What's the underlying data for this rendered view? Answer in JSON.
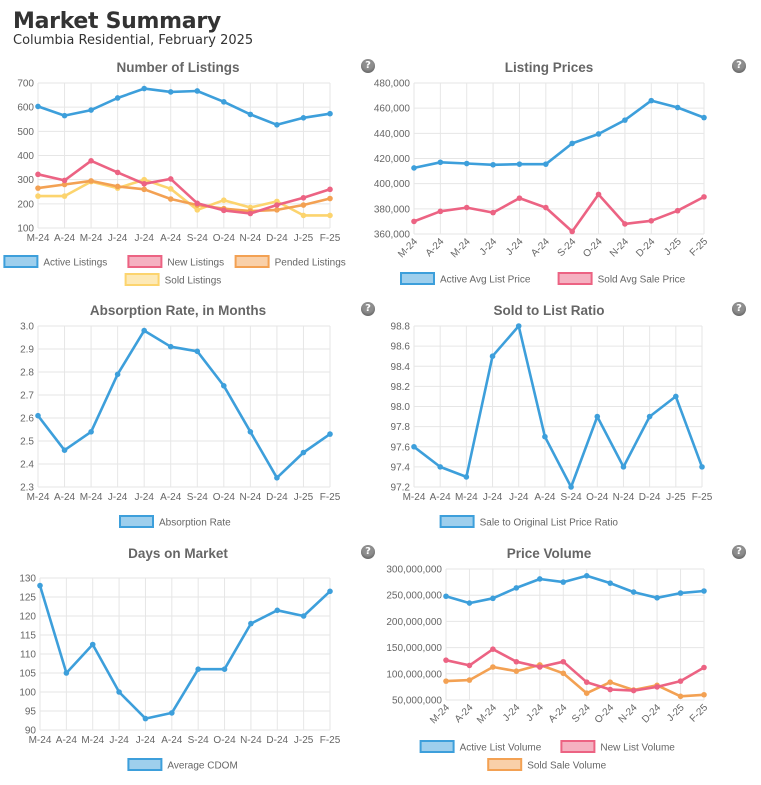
{
  "page": {
    "title": "Market Summary",
    "subtitle": "Columbia Residential, February 2025",
    "help_glyph": "?"
  },
  "chart_data": [
    {
      "id": "listings",
      "type": "line",
      "title": "Number of Listings",
      "categories": [
        "M-24",
        "A-24",
        "M-24",
        "J-24",
        "J-24",
        "A-24",
        "S-24",
        "O-24",
        "N-24",
        "D-24",
        "J-25",
        "F-25"
      ],
      "ylim": [
        100,
        700
      ],
      "yticks": [
        100,
        200,
        300,
        400,
        500,
        600,
        700
      ],
      "grid": true,
      "legend_position": "bottom",
      "series": [
        {
          "name": "Active Listings",
          "color": "#3d9fdb",
          "values": [
            603,
            565,
            588,
            638,
            677,
            663,
            667,
            622,
            570,
            527,
            556,
            573
          ]
        },
        {
          "name": "New Listings",
          "color": "#ec6383",
          "values": [
            322,
            297,
            378,
            330,
            283,
            303,
            202,
            173,
            160,
            195,
            225,
            260
          ]
        },
        {
          "name": "Pended Listings",
          "color": "#f3a153",
          "values": [
            265,
            280,
            295,
            272,
            260,
            220,
            195,
            180,
            170,
            175,
            195,
            222
          ]
        },
        {
          "name": "Sold Listings",
          "color": "#fcd46e",
          "values": [
            232,
            232,
            292,
            265,
            300,
            262,
            175,
            215,
            185,
            210,
            152,
            152
          ]
        }
      ]
    },
    {
      "id": "prices",
      "type": "line",
      "title": "Listing Prices",
      "categories": [
        "M-24",
        "A-24",
        "M-24",
        "J-24",
        "J-24",
        "A-24",
        "S-24",
        "O-24",
        "N-24",
        "D-24",
        "J-25",
        "F-25"
      ],
      "ylim": [
        360000,
        480000
      ],
      "yticks": [
        360000,
        380000,
        400000,
        420000,
        440000,
        460000,
        480000
      ],
      "tick_labels": [
        "360,000",
        "380,000",
        "400,000",
        "420,000",
        "440,000",
        "460,000",
        "480,000"
      ],
      "rotated_x_labels": true,
      "grid": true,
      "legend_position": "bottom",
      "series": [
        {
          "name": "Active Avg List Price",
          "color": "#3d9fdb",
          "values": [
            412500,
            417000,
            416000,
            415000,
            415500,
            415500,
            432000,
            439500,
            450500,
            466000,
            460500,
            452500
          ]
        },
        {
          "name": "Sold Avg Sale Price",
          "color": "#ec6383",
          "values": [
            370000,
            378000,
            381000,
            377000,
            388500,
            381000,
            362000,
            391500,
            368000,
            370500,
            378500,
            389500
          ]
        }
      ]
    },
    {
      "id": "absorption",
      "type": "line",
      "title": "Absorption Rate, in Months",
      "categories": [
        "M-24",
        "A-24",
        "M-24",
        "J-24",
        "J-24",
        "A-24",
        "S-24",
        "O-24",
        "N-24",
        "D-24",
        "J-25",
        "F-25"
      ],
      "ylim": [
        2.3,
        3.0
      ],
      "yticks": [
        2.3,
        2.4,
        2.5,
        2.6,
        2.7,
        2.8,
        2.9,
        3.0
      ],
      "tick_labels": [
        "2.3",
        "2.4",
        "2.5",
        "2.6",
        "2.7",
        "2.8",
        "2.9",
        "3.0"
      ],
      "grid": true,
      "legend_position": "bottom",
      "series": [
        {
          "name": "Absorption Rate",
          "color": "#3d9fdb",
          "values": [
            2.61,
            2.46,
            2.54,
            2.79,
            2.98,
            2.91,
            2.89,
            2.74,
            2.54,
            2.34,
            2.45,
            2.53
          ]
        }
      ]
    },
    {
      "id": "ratio",
      "type": "line",
      "title": "Sold to List Ratio",
      "categories": [
        "M-24",
        "A-24",
        "M-24",
        "J-24",
        "J-24",
        "A-24",
        "S-24",
        "O-24",
        "N-24",
        "D-24",
        "J-25",
        "F-25"
      ],
      "ylim": [
        97.2,
        98.8
      ],
      "yticks": [
        97.2,
        97.4,
        97.6,
        97.8,
        98.0,
        98.2,
        98.4,
        98.6,
        98.8
      ],
      "tick_labels": [
        "97.2",
        "97.4",
        "97.6",
        "97.8",
        "98.0",
        "98.2",
        "98.4",
        "98.6",
        "98.8"
      ],
      "grid": true,
      "legend_position": "bottom",
      "series": [
        {
          "name": "Sale to Original List Price Ratio",
          "color": "#3d9fdb",
          "values": [
            97.6,
            97.4,
            97.3,
            98.5,
            98.8,
            97.7,
            97.2,
            97.9,
            97.4,
            97.9,
            98.1,
            97.4
          ]
        }
      ]
    },
    {
      "id": "dom",
      "type": "line",
      "title": "Days on Market",
      "categories": [
        "M-24",
        "A-24",
        "M-24",
        "J-24",
        "J-24",
        "A-24",
        "S-24",
        "O-24",
        "N-24",
        "D-24",
        "J-25",
        "F-25"
      ],
      "ylim": [
        90,
        130
      ],
      "yticks": [
        90,
        95,
        100,
        105,
        110,
        115,
        120,
        125,
        130
      ],
      "grid": true,
      "legend_position": "bottom",
      "series": [
        {
          "name": "Average CDOM",
          "color": "#3d9fdb",
          "values": [
            128,
            105,
            112.5,
            100,
            93,
            94.5,
            106,
            106,
            118,
            121.5,
            120,
            126.5
          ]
        }
      ]
    },
    {
      "id": "volume",
      "type": "line",
      "title": "Price Volume",
      "categories": [
        "M-24",
        "A-24",
        "M-24",
        "J-24",
        "J-24",
        "A-24",
        "S-24",
        "O-24",
        "N-24",
        "D-24",
        "J-25",
        "F-25"
      ],
      "ylim": [
        50000000,
        300000000
      ],
      "yticks": [
        50000000,
        100000000,
        150000000,
        200000000,
        250000000,
        300000000
      ],
      "tick_labels": [
        "50,000,000",
        "100,000,000",
        "150,000,000",
        "200,000,000",
        "250,000,000",
        "300,000,000"
      ],
      "rotated_x_labels": true,
      "grid": true,
      "legend_position": "bottom",
      "series": [
        {
          "name": "Active List Volume",
          "color": "#3d9fdb",
          "values": [
            248000000,
            235000000,
            244000000,
            264000000,
            281000000,
            275000000,
            287000000,
            273000000,
            256000000,
            245000000,
            254000000,
            258000000
          ]
        },
        {
          "name": "New List Volume",
          "color": "#ec6383",
          "values": [
            126000000,
            116000000,
            147000000,
            123000000,
            113000000,
            123000000,
            84000000,
            70000000,
            68000000,
            75000000,
            86000000,
            112000000
          ]
        },
        {
          "name": "Sold Sale Volume",
          "color": "#f3a153",
          "values": [
            86000000,
            88000000,
            113000000,
            105000000,
            117000000,
            101000000,
            63000000,
            84000000,
            69000000,
            78000000,
            57000000,
            60000000
          ]
        }
      ]
    }
  ]
}
